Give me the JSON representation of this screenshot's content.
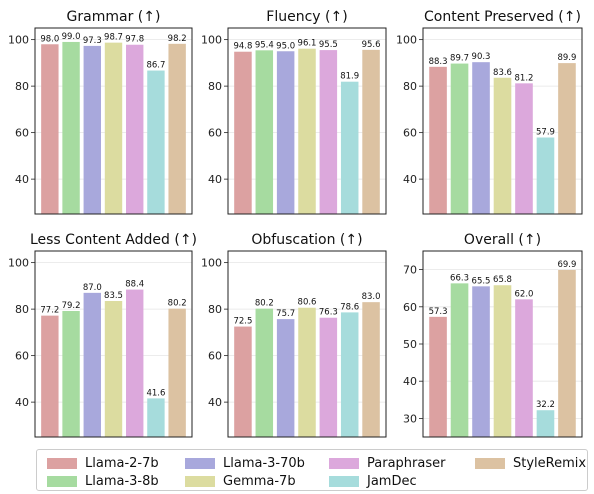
{
  "series_colors": [
    "#dca1a1",
    "#a6dba0",
    "#a8a8dc",
    "#dcdca0",
    "#dca8dc",
    "#a6dcdc",
    "#dcc2a2"
  ],
  "legend": [
    "Llama-2-7b",
    "Llama-3-8b",
    "Llama-3-70b",
    "Gemma-7b",
    "Paraphraser",
    "JamDec",
    "StyleRemix"
  ],
  "chart_data": [
    {
      "type": "bar",
      "title": "Grammar (↑)",
      "categories": [
        "Llama-2-7b",
        "Llama-3-8b",
        "Llama-3-70b",
        "Gemma-7b",
        "Paraphraser",
        "JamDec",
        "StyleRemix"
      ],
      "values": [
        98.0,
        99.0,
        97.3,
        98.7,
        97.8,
        86.7,
        98.2
      ],
      "labels": [
        "98.0",
        "99.0",
        "97.3",
        "98.7",
        "97.8",
        "86.7",
        "98.2"
      ],
      "ylim": [
        25,
        105
      ],
      "yticks": [
        "40",
        "60",
        "80",
        "100"
      ],
      "ytick_values": [
        40,
        60,
        80,
        100
      ],
      "grid": true
    },
    {
      "type": "bar",
      "title": "Fluency (↑)",
      "categories": [
        "Llama-2-7b",
        "Llama-3-8b",
        "Llama-3-70b",
        "Gemma-7b",
        "Paraphraser",
        "JamDec",
        "StyleRemix"
      ],
      "values": [
        94.8,
        95.4,
        95.0,
        96.1,
        95.5,
        81.9,
        95.6
      ],
      "labels": [
        "94.8",
        "95.4",
        "95.0",
        "96.1",
        "95.5",
        "81.9",
        "95.6"
      ],
      "ylim": [
        25,
        105
      ],
      "yticks": [
        "40",
        "60",
        "80",
        "100"
      ],
      "ytick_values": [
        40,
        60,
        80,
        100
      ],
      "grid": true
    },
    {
      "type": "bar",
      "title": "Content Preserved (↑)",
      "categories": [
        "Llama-2-7b",
        "Llama-3-8b",
        "Llama-3-70b",
        "Gemma-7b",
        "Paraphraser",
        "JamDec",
        "StyleRemix"
      ],
      "values": [
        88.3,
        89.7,
        90.3,
        83.6,
        81.2,
        57.9,
        89.9
      ],
      "labels": [
        "88.3",
        "89.7",
        "90.3",
        "83.6",
        "81.2",
        "57.9",
        "89.9"
      ],
      "ylim": [
        25,
        105
      ],
      "yticks": [
        "40",
        "60",
        "80",
        "100"
      ],
      "ytick_values": [
        40,
        60,
        80,
        100
      ],
      "grid": true
    },
    {
      "type": "bar",
      "title": "Less Content Added (↑)",
      "categories": [
        "Llama-2-7b",
        "Llama-3-8b",
        "Llama-3-70b",
        "Gemma-7b",
        "Paraphraser",
        "JamDec",
        "StyleRemix"
      ],
      "values": [
        77.2,
        79.2,
        87.0,
        83.5,
        88.4,
        41.6,
        80.2
      ],
      "labels": [
        "77.2",
        "79.2",
        "87.0",
        "83.5",
        "88.4",
        "41.6",
        "80.2"
      ],
      "ylim": [
        25,
        105
      ],
      "yticks": [
        "40",
        "60",
        "80",
        "100"
      ],
      "ytick_values": [
        40,
        60,
        80,
        100
      ],
      "grid": true
    },
    {
      "type": "bar",
      "title": "Obfuscation (↑)",
      "categories": [
        "Llama-2-7b",
        "Llama-3-8b",
        "Llama-3-70b",
        "Gemma-7b",
        "Paraphraser",
        "JamDec",
        "StyleRemix"
      ],
      "values": [
        72.5,
        80.2,
        75.7,
        80.6,
        76.3,
        78.6,
        83.0
      ],
      "labels": [
        "72.5",
        "80.2",
        "75.7",
        "80.6",
        "76.3",
        "78.6",
        "83.0"
      ],
      "ylim": [
        25,
        105
      ],
      "yticks": [
        "40",
        "60",
        "80",
        "100"
      ],
      "ytick_values": [
        40,
        60,
        80,
        100
      ],
      "grid": true
    },
    {
      "type": "bar",
      "title": "Overall (↑)",
      "categories": [
        "Llama-2-7b",
        "Llama-3-8b",
        "Llama-3-70b",
        "Gemma-7b",
        "Paraphraser",
        "JamDec",
        "StyleRemix"
      ],
      "values": [
        57.3,
        66.3,
        65.5,
        65.8,
        62.0,
        32.2,
        69.9
      ],
      "labels": [
        "57.3",
        "66.3",
        "65.5",
        "65.8",
        "62.0",
        "32.2",
        "69.9"
      ],
      "ylim": [
        25,
        75
      ],
      "yticks": [
        "30",
        "40",
        "50",
        "60",
        "70"
      ],
      "ytick_values": [
        30,
        40,
        50,
        60,
        70
      ],
      "grid": true
    }
  ]
}
